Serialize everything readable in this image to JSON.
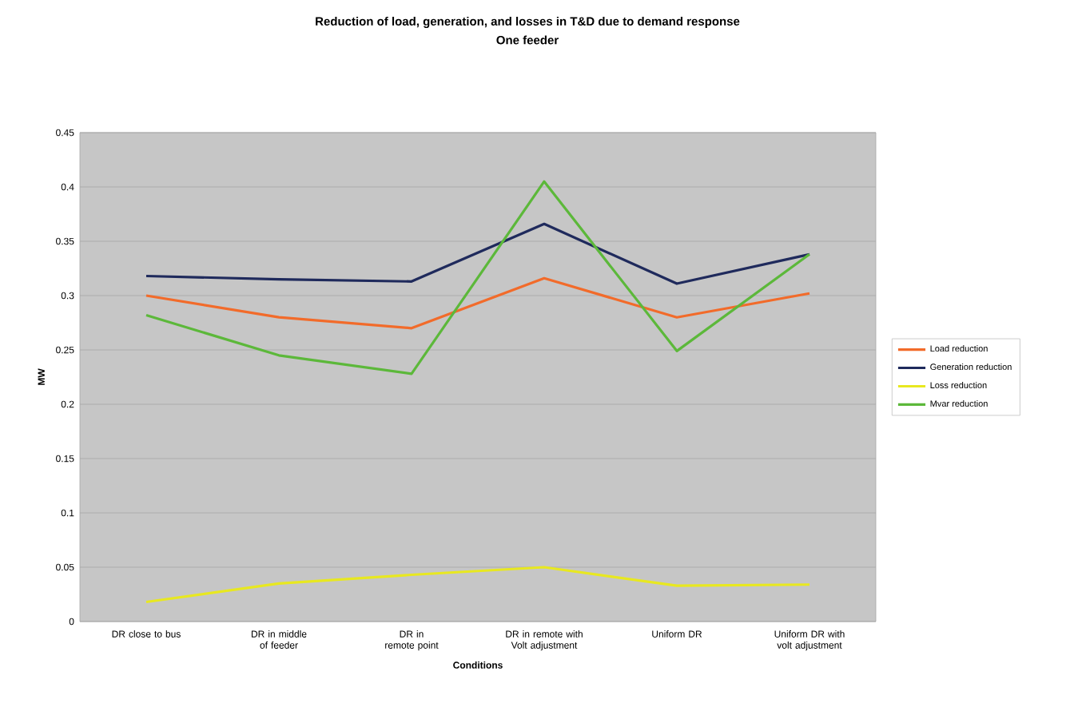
{
  "chart_data": {
    "type": "line",
    "title": "Reduction of load, generation, and losses in T&D due to demand response",
    "subtitle": "One feeder",
    "xlabel": "Conditions",
    "ylabel": "MW",
    "categories": [
      "DR close to bus",
      "DR in middle of feeder",
      "DR in remote point",
      "DR in remote with Volt adjustment",
      "Uniform DR",
      "Uniform DR with volt adjustment"
    ],
    "series": [
      {
        "name": "Load reduction",
        "color": "#f26b2a",
        "values": [
          0.3,
          0.28,
          0.27,
          0.316,
          0.28,
          0.302
        ]
      },
      {
        "name": "Generation reduction",
        "color": "#1f2a5c",
        "values": [
          0.318,
          0.315,
          0.313,
          0.366,
          0.311,
          0.338
        ]
      },
      {
        "name": "Loss reduction",
        "color": "#e8e820",
        "values": [
          0.018,
          0.035,
          0.043,
          0.05,
          0.033,
          0.034
        ]
      },
      {
        "name": "Mvar reduction",
        "color": "#5cb83a",
        "values": [
          0.282,
          0.245,
          0.228,
          0.405,
          0.249,
          0.338
        ]
      }
    ],
    "ylim": [
      0,
      0.45
    ],
    "yticks": [
      0,
      0.05,
      0.1,
      0.15,
      0.2,
      0.25,
      0.3,
      0.35,
      0.4,
      0.45
    ],
    "grid": "y",
    "legend": "right",
    "marker": "none",
    "line_style": "solid"
  }
}
